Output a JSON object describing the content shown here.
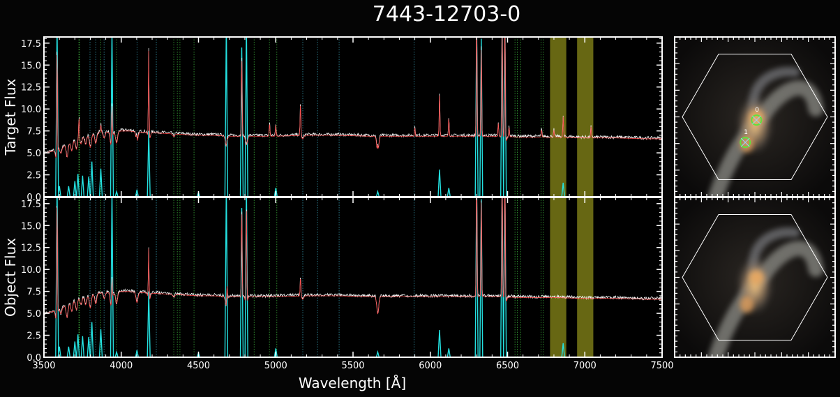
{
  "figure": {
    "title": "7443-12703-0"
  },
  "chart_data": [
    {
      "type": "line",
      "panel": "top",
      "ylabel": "Target Flux",
      "xlabel": "",
      "xlim": [
        3500,
        7500
      ],
      "ylim": [
        0,
        18.2
      ],
      "xticks": [
        3500,
        4000,
        4500,
        5000,
        5500,
        6000,
        6500,
        7000,
        7500
      ],
      "yticks": [
        "0.0",
        "2.5",
        "5.0",
        "7.5",
        "10.0",
        "12.5",
        "15.0",
        "17.5"
      ],
      "continuum": [
        [
          3500,
          5.0
        ],
        [
          3560,
          5.3
        ],
        [
          3620,
          5.8
        ],
        [
          3680,
          6.4
        ],
        [
          3720,
          6.8
        ],
        [
          3760,
          7.0
        ],
        [
          3800,
          7.2
        ],
        [
          3850,
          7.4
        ],
        [
          3900,
          7.5
        ],
        [
          3950,
          7.4
        ],
        [
          4000,
          7.6
        ],
        [
          4050,
          7.6
        ],
        [
          4100,
          7.5
        ],
        [
          4200,
          7.4
        ],
        [
          4300,
          7.3
        ],
        [
          4400,
          7.2
        ],
        [
          4500,
          7.1
        ],
        [
          4600,
          7.1
        ],
        [
          4700,
          7.0
        ],
        [
          4800,
          7.0
        ],
        [
          4900,
          7.0
        ],
        [
          5000,
          7.0
        ],
        [
          5200,
          7.1
        ],
        [
          5400,
          7.1
        ],
        [
          5600,
          7.0
        ],
        [
          5800,
          7.0
        ],
        [
          6000,
          7.0
        ],
        [
          6200,
          7.0
        ],
        [
          6400,
          7.0
        ],
        [
          6600,
          6.9
        ],
        [
          6800,
          6.9
        ],
        [
          7000,
          6.8
        ],
        [
          7200,
          6.8
        ],
        [
          7400,
          6.7
        ],
        [
          7500,
          6.7
        ]
      ],
      "absorption": [
        [
          3580,
          1.1
        ],
        [
          3610,
          0.7
        ],
        [
          3650,
          1.5
        ],
        [
          3680,
          1.1
        ],
        [
          3710,
          1.2
        ],
        [
          3740,
          0.8
        ],
        [
          3770,
          1.0
        ],
        [
          3800,
          1.5
        ],
        [
          3835,
          1.2
        ],
        [
          3890,
          0.7
        ],
        [
          3935,
          1.6
        ],
        [
          3970,
          1.3
        ],
        [
          4102,
          1.2
        ],
        [
          4180,
          1.1
        ],
        [
          4340,
          0.3
        ],
        [
          4680,
          1.1
        ],
        [
          4810,
          1.0
        ],
        [
          5175,
          0.4
        ],
        [
          5660,
          2.0
        ],
        [
          6490,
          0.5
        ]
      ],
      "emission": [
        [
          3585,
          13.0
        ],
        [
          3727,
          2.6
        ],
        [
          3868,
          0.9
        ],
        [
          3940,
          4.5
        ],
        [
          4100,
          0.8
        ],
        [
          4178,
          10.5
        ],
        [
          4685,
          0.4
        ],
        [
          4780,
          9.6
        ],
        [
          4960,
          1.5
        ],
        [
          5000,
          1.3
        ],
        [
          5160,
          3.8
        ],
        [
          5660,
          1.0
        ],
        [
          5900,
          1.0
        ],
        [
          6060,
          5.2
        ],
        [
          6120,
          2.2
        ],
        [
          6300,
          15.0
        ],
        [
          6330,
          11.0
        ],
        [
          6440,
          1.5
        ],
        [
          6465,
          14.0
        ],
        [
          6483,
          15.0
        ],
        [
          6510,
          1.2
        ],
        [
          6720,
          0.9
        ],
        [
          6800,
          0.8
        ],
        [
          6860,
          2.4
        ],
        [
          7040,
          1.3
        ]
      ],
      "obj_emission": [
        [
          3585,
          14.0
        ],
        [
          3940,
          3.0
        ],
        [
          4178,
          6.2
        ],
        [
          4685,
          2.0
        ],
        [
          4780,
          10.5
        ],
        [
          4810,
          12.0
        ],
        [
          5160,
          2.2
        ],
        [
          6300,
          16.0
        ],
        [
          6330,
          12.0
        ],
        [
          6465,
          15.0
        ],
        [
          6483,
          16.0
        ]
      ],
      "model_lines": [
        [
          3585,
          20
        ],
        [
          3600,
          1.2
        ],
        [
          3660,
          1.2
        ],
        [
          3700,
          1.8
        ],
        [
          3720,
          2.6
        ],
        [
          3750,
          2.4
        ],
        [
          3790,
          2.3
        ],
        [
          3810,
          4.0
        ],
        [
          3868,
          3.2
        ],
        [
          3940,
          19
        ],
        [
          3970,
          0.6
        ],
        [
          4102,
          0.8
        ],
        [
          4178,
          7.5
        ],
        [
          4500,
          0.5
        ],
        [
          4680,
          20
        ],
        [
          4780,
          17
        ],
        [
          4810,
          20
        ],
        [
          5000,
          1.0
        ],
        [
          5660,
          0.6
        ],
        [
          6060,
          3.1
        ],
        [
          6120,
          1.0
        ],
        [
          6300,
          20
        ],
        [
          6330,
          18
        ],
        [
          6465,
          20
        ],
        [
          6483,
          20
        ],
        [
          6860,
          1.6
        ]
      ],
      "sky_bands": [
        [
          6775,
          6880
        ],
        [
          6950,
          7055
        ]
      ],
      "marker_lines": {
        "green": [
          3726,
          3730,
          3868,
          3970,
          4340,
          4363,
          4380,
          4471,
          4860,
          4959,
          5007,
          6548,
          6563,
          6584,
          6717,
          6731
        ],
        "cyan": [
          3798,
          3835,
          3889,
          4102,
          4227,
          5175,
          5270,
          5410,
          5895
        ]
      }
    },
    {
      "type": "line",
      "panel": "bottom",
      "ylabel": "Object Flux",
      "xlabel": "Wavelength [Å]",
      "xlim": [
        3500,
        7500
      ],
      "ylim": [
        0,
        18.2
      ],
      "xticks": [
        3500,
        4000,
        4500,
        5000,
        5500,
        6000,
        6500,
        7000,
        7500
      ],
      "yticks": [
        "0.0",
        "2.5",
        "5.0",
        "7.5",
        "10.0",
        "12.5",
        "15.0",
        "17.5"
      ],
      "same_as_top": true
    }
  ],
  "cutouts": [
    {
      "panel": "top",
      "markers": [
        {
          "label": "0",
          "x": 0.51,
          "y": 0.52
        },
        {
          "label": "1",
          "x": 0.44,
          "y": 0.66
        }
      ]
    },
    {
      "panel": "bottom",
      "markers": []
    }
  ],
  "colors": {
    "data": "#f4f4f4",
    "model": "#ff3c3c",
    "component": "#24e0e0",
    "band": "#8a8a1a",
    "green_line": "#44c844",
    "cyan_line": "#3fb0c8",
    "marker": "#5fe23c"
  }
}
